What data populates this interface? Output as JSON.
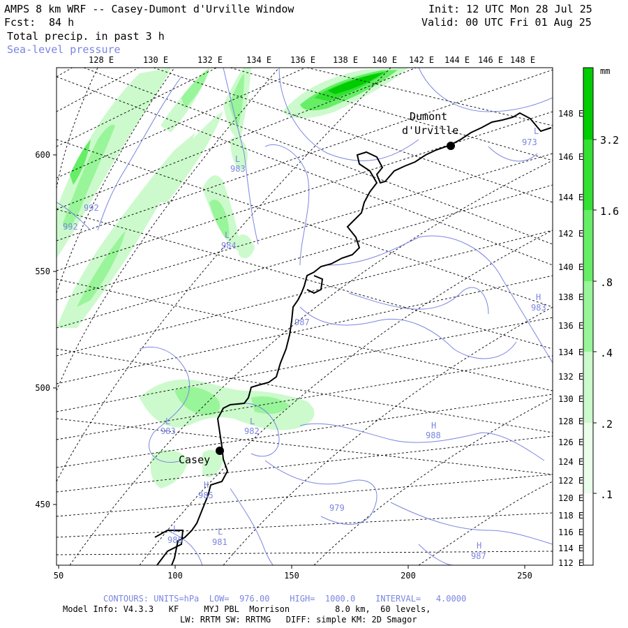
{
  "header": {
    "title": "AMPS 8 km WRF -- Casey-Dumont d'Urville Window",
    "fcst_label": "Fcst:",
    "fcst_value": "84 h",
    "field": "Total precip. in past 3 h",
    "overlay": "Sea-level pressure",
    "init": "Init: 12 UTC Mon 28 Jul 25",
    "valid": "Valid: 00 UTC Fri 01 Aug 25"
  },
  "axes": {
    "top_labels": [
      "128 E",
      "130 E",
      "132 E",
      "134 E",
      "136 E",
      "138 E",
      "140 E",
      "142 E",
      "144 E",
      "146 E",
      "148 E"
    ],
    "right_labels": [
      "148 E",
      "146 E",
      "144 E",
      "142 E",
      "140 E",
      "138 E",
      "136 E",
      "134 E",
      "132 E",
      "130 E",
      "128 E",
      "126 E",
      "124 E",
      "122 E",
      "120 E",
      "118 E",
      "116 E",
      "114 E",
      "112 E"
    ],
    "left_labels": [
      "600",
      "550",
      "500",
      "450"
    ],
    "bottom_labels": [
      "50",
      "100",
      "150",
      "200",
      "250"
    ]
  },
  "stations": [
    {
      "name_line1": "Dumont",
      "name_line2": "d'Urville"
    },
    {
      "name_line1": "Casey"
    }
  ],
  "pressure_centers": [
    {
      "type": "L",
      "value": "983"
    },
    {
      "type": "L",
      "value": "984"
    },
    {
      "type": "",
      "value": "992"
    },
    {
      "type": "",
      "value": "992"
    },
    {
      "type": "",
      "value": "987"
    },
    {
      "type": "L",
      "value": "983"
    },
    {
      "type": "L",
      "value": "982"
    },
    {
      "type": "H",
      "value": "988"
    },
    {
      "type": "H",
      "value": "985"
    },
    {
      "type": "",
      "value": "979"
    },
    {
      "type": "L",
      "value": "986"
    },
    {
      "type": "L",
      "value": "981"
    },
    {
      "type": "H",
      "value": "987"
    },
    {
      "type": "H",
      "value": "983"
    },
    {
      "type": "L",
      "value": "973"
    }
  ],
  "colorbar": {
    "unit": "mm",
    "levels": [
      "3.2",
      "1.6",
      ".8",
      ".4",
      ".2",
      ".1"
    ],
    "colors": [
      "#00cc00",
      "#33e033",
      "#66ee66",
      "#99f599",
      "#ccfacc",
      "#ebfdeb"
    ]
  },
  "footer": {
    "contours": "CONTOURS: UNITS=hPa  LOW=  976.00    HIGH=  1000.0    INTERVAL=   4.0000",
    "model_info": "Model Info: V4.3.3   KF     MYJ PBL  Morrison         8.0 km,  60 levels,",
    "physics": "LW: RRTM SW: RRTMG   DIFF: simple KM: 2D Smagor"
  },
  "colors": {
    "contour": "#7a86e0",
    "coast": "#000000",
    "grid": "#000000"
  }
}
